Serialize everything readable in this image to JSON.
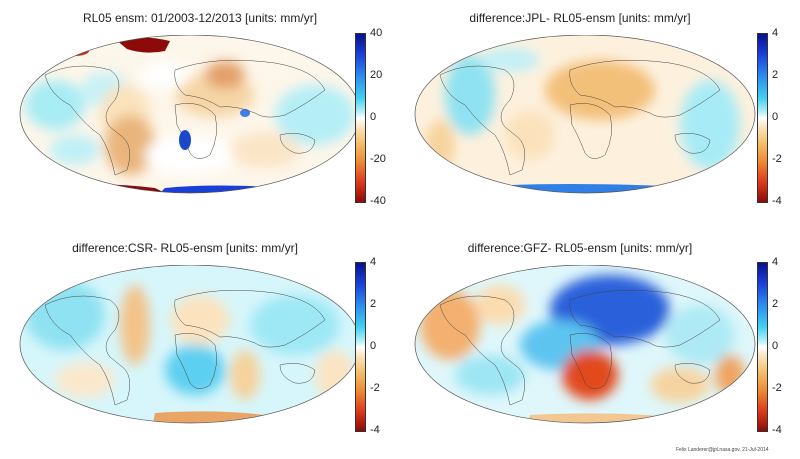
{
  "panels": [
    {
      "title": "RL05 ensm: 01/2003-12/2013 [units: mm/yr]",
      "ticks": [
        "40",
        "20",
        "0",
        "-20",
        "-40"
      ]
    },
    {
      "title": "difference:JPL- RL05-ensm [units: mm/yr]",
      "ticks": [
        "4",
        "2",
        "0",
        "-2",
        "-4"
      ]
    },
    {
      "title": "difference:CSR- RL05-ensm [units: mm/yr]",
      "ticks": [
        "4",
        "2",
        "0",
        "-2",
        "-4"
      ]
    },
    {
      "title": "difference:GFZ- RL05-ensm [units: mm/yr]",
      "ticks": [
        "4",
        "2",
        "0",
        "-2",
        "-4"
      ]
    }
  ],
  "credit": "Felix Landerer@jpl.nasa.gov, 21-Jul-2014"
}
